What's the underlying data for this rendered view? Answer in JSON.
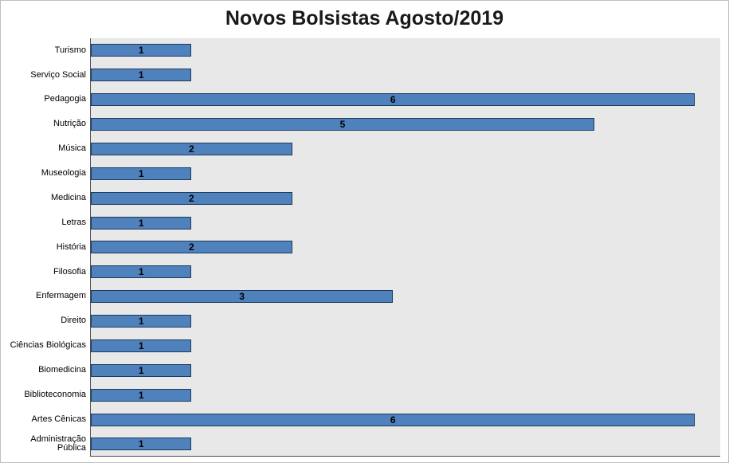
{
  "chart_data": {
    "type": "bar",
    "orientation": "horizontal",
    "title": "Novos Bolsistas Agosto/2019",
    "categories": [
      "Turismo",
      "Serviço Social",
      "Pedagogia",
      "Nutrição",
      "Música",
      "Museologia",
      "Medicina",
      "Letras",
      "História",
      "Filosofia",
      "Enfermagem",
      "Direito",
      "Ciências Biológicas",
      "Biomedicina",
      "Biblioteconomia",
      "Artes Cênicas",
      "Administração Pública"
    ],
    "values": [
      1,
      1,
      6,
      5,
      2,
      1,
      2,
      1,
      2,
      1,
      3,
      1,
      1,
      1,
      1,
      6,
      1
    ],
    "xlabel": "",
    "ylabel": "",
    "xlim": [
      0,
      6.25
    ],
    "data_labels": true,
    "data_label_position": "center",
    "grid": false,
    "legend": false,
    "colors": {
      "bar_fill": "#4f81bd",
      "bar_border": "#1c3b5e",
      "plot_background": "#e8e8e8",
      "data_label_color": "#000000",
      "axis_line": "#4d4d4d",
      "chart_border": "#bfbfbf"
    }
  }
}
